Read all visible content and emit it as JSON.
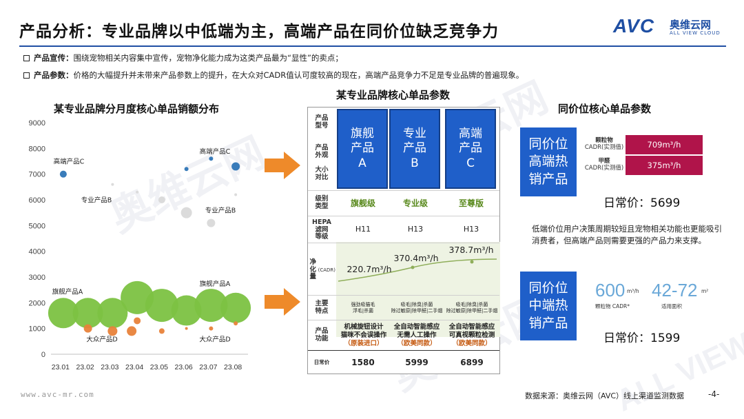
{
  "page": {
    "title": "产品分析：专业品牌以中低端为主，高端产品在同价位缺乏竞争力",
    "logo_text": "AVC",
    "logo_cn": "奥维云网",
    "logo_en": "ALL VIEW CLOUD",
    "bullets": [
      {
        "label": "产品宣传：",
        "text": "围绕宠物相关内容集中宣传，宠物净化能力成为这类产品最为“显性”的卖点；"
      },
      {
        "label": "产品参数：",
        "text": "价格的大幅提升并未带来产品参数上的提升，在大众对CADR值认可度较高的现在，高端产品竞争力不足是专业品牌的普遍现象。"
      }
    ],
    "watermark": "奥维云网",
    "watermark_en": "ALL VIEW CLOUD",
    "footer_left": "www.avc-mr.com",
    "footer_source": "数据来源：奥维云网（AVC）线上渠道监测数据",
    "page_number": "-4-",
    "colors": {
      "brand": "#1f4fa3",
      "box_blue": "#1f5fc9",
      "cadr_bar": "#b0144a",
      "bubble_green": "#7cc242",
      "bubble_orange": "#e8823a",
      "arrow_orange": "#ee8a2a"
    }
  },
  "chart_data": {
    "type": "scatter",
    "title": "某专业品牌分月度核心单品销额分布",
    "categories": [
      "23.01",
      "23.02",
      "23.03",
      "23.04",
      "23.05",
      "23.06",
      "23.07",
      "23.08"
    ],
    "ylim": [
      0,
      9000
    ],
    "yticks": [
      0,
      1000,
      2000,
      3000,
      4000,
      5000,
      6000,
      7000,
      8000,
      9000
    ],
    "series": [
      {
        "name": "高端产品C",
        "color": "#2e75b6",
        "points": [
          [
            0,
            7000,
            5
          ],
          [
            5,
            7200,
            3
          ],
          [
            6,
            7600,
            3
          ],
          [
            7,
            7300,
            6
          ]
        ]
      },
      {
        "name": "专业产品B",
        "color": "#d9d9d9",
        "points": [
          [
            2,
            6600,
            2
          ],
          [
            3,
            6300,
            2
          ],
          [
            4,
            6000,
            5
          ],
          [
            5,
            5500,
            8
          ],
          [
            6,
            5100,
            6
          ],
          [
            7,
            6200,
            2
          ]
        ]
      },
      {
        "name": "旗舰产品A",
        "color": "#7cc242",
        "points": [
          [
            0,
            1600,
            22
          ],
          [
            1,
            1600,
            22
          ],
          [
            2,
            1600,
            22
          ],
          [
            3,
            2200,
            24
          ],
          [
            4,
            1900,
            24
          ],
          [
            5,
            1700,
            22
          ],
          [
            6,
            1900,
            24
          ],
          [
            7,
            1800,
            22
          ]
        ]
      },
      {
        "name": "大众产品D",
        "color": "#e8823a",
        "points": [
          [
            1,
            1000,
            6
          ],
          [
            2,
            900,
            7
          ],
          [
            3,
            1300,
            5
          ],
          [
            3,
            900,
            7
          ],
          [
            4,
            900,
            4
          ],
          [
            5,
            1000,
            2
          ],
          [
            6,
            1000,
            3
          ],
          [
            7,
            1200,
            3
          ]
        ]
      }
    ],
    "annotations": [
      "高端产品C",
      "专业产品B",
      "专业产品B",
      "高端产品C",
      "旗舰产品A",
      "旗舰产品A",
      "大众产品D",
      "大众产品D"
    ]
  },
  "table": {
    "title": "某专业品牌核心单品参数",
    "row_labels": [
      "产品型号",
      "产品外观大小对比",
      "级别类型",
      "HEPA滤网等级",
      "净化量(CADR)",
      "主要特点",
      "产品功能",
      "日常价"
    ],
    "products": [
      {
        "name": "旗舰\n产品\nA",
        "level": "旗舰级",
        "hepa": "H11",
        "cadr": "220.7m³/h",
        "features": "强劲吸猫毛\n浮毛|杀菌",
        "func1": "机械旋钮设计",
        "func2": "猫咪不会误操作",
        "func3": "（原装进口）",
        "price": "1580"
      },
      {
        "name": "专业\n产品\nB",
        "level": "专业级",
        "hepa": "H13",
        "cadr": "370.4m³/h",
        "features": "吸毛|除臭|杀菌\n除过敏原|除甲醛|二手烟",
        "func1": "全自动智能感应",
        "func2": "无需人工操作",
        "func3": "（欧美同款）",
        "price": "5999"
      },
      {
        "name": "高端\n产品\nC",
        "level": "至尊版",
        "hepa": "H13",
        "cadr": "378.7m³/h",
        "features": "吸毛|除臭|杀菌\n除过敏原|除甲醛|二手烟",
        "func1": "全自动智能感应",
        "func2": "可真视颗粒检测",
        "func3": "（欧美同款）",
        "price": "6899"
      }
    ]
  },
  "right": {
    "title": "同价位核心单品参数",
    "high": {
      "box": "同价位\n高端热\n销产品",
      "particle_label": "颗粒物",
      "particle_sub": "CADR(实测值)",
      "particle_value": "709m³/h",
      "formaldehyde_label": "甲醛",
      "formaldehyde_sub": "CADR(实测值)",
      "formaldehyde_value": "375m³/h",
      "price": "日常价：5699"
    },
    "desc": "低端价位用户决策周期较短且宠物相关功能也更能吸引消费者，但高端产品则需要更强的产品力来支撑。",
    "mid": {
      "box": "同价位\n中端热\n销产品",
      "cadr_value": "600",
      "cadr_unit": "m³/h",
      "cadr_label": "颗粒物 CADR*",
      "area_value": "42-72",
      "area_unit": "m²",
      "area_label": "适用面积",
      "price": "日常价：1599"
    }
  }
}
